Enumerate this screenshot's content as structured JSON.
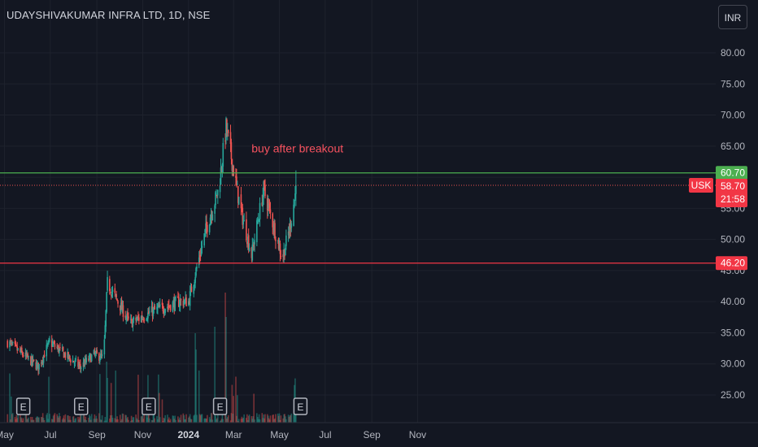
{
  "header": {
    "title": "UDAYSHIVAKUMAR INFRA LTD, 1D, NSE",
    "currency": "INR"
  },
  "colors": {
    "background": "#131722",
    "grid": "#1e222d",
    "up": "#26a69a",
    "down": "#ef5350",
    "resistance": "#4caf50",
    "support": "#f23645",
    "annotation": "#f7525f",
    "text": "#b2b5be"
  },
  "chart_data": {
    "type": "candlestick",
    "title": "UDAYSHIVAKUMAR INFRA LTD, 1D, NSE",
    "y_ticks": [
      "25.00",
      "30.00",
      "35.00",
      "40.00",
      "45.00",
      "50.00",
      "55.00",
      "60.00",
      "65.00",
      "70.00",
      "75.00",
      "80.00"
    ],
    "x_ticks": [
      "May",
      "Jul",
      "Sep",
      "Nov",
      "2024",
      "Mar",
      "May",
      "Jul",
      "Sep",
      "Nov"
    ],
    "ylim": [
      20.5,
      86
    ],
    "grid": true,
    "price_segments": [
      {
        "from": "2023-05-05",
        "to": "2023-06-15",
        "start": 33.5,
        "end": 29.5
      },
      {
        "from": "2023-06-15",
        "to": "2023-06-30",
        "start": 29.5,
        "end": 33.5
      },
      {
        "from": "2023-06-30",
        "to": "2023-08-10",
        "start": 33.5,
        "end": 29.5
      },
      {
        "from": "2023-08-10",
        "to": "2023-08-28",
        "start": 29.5,
        "end": 31.5
      },
      {
        "from": "2023-08-28",
        "to": "2023-09-10",
        "start": 31.5,
        "end": 31.0
      },
      {
        "from": "2023-09-10",
        "to": "2023-09-15",
        "start": 31.0,
        "end": 43.0
      },
      {
        "from": "2023-09-15",
        "to": "2023-10-15",
        "start": 43.0,
        "end": 36.5
      },
      {
        "from": "2023-10-15",
        "to": "2023-11-15",
        "start": 36.5,
        "end": 38.5
      },
      {
        "from": "2023-11-15",
        "to": "2023-12-20",
        "start": 38.5,
        "end": 40.0
      },
      {
        "from": "2023-12-20",
        "to": "2024-01-01",
        "start": 40.0,
        "end": 40.0
      },
      {
        "from": "2024-01-01",
        "to": "2024-01-25",
        "start": 40.0,
        "end": 52.0
      },
      {
        "from": "2024-01-25",
        "to": "2024-02-10",
        "start": 52.0,
        "end": 58.0
      },
      {
        "from": "2024-02-10",
        "to": "2024-02-20",
        "start": 58.0,
        "end": 68.0
      },
      {
        "from": "2024-02-20",
        "to": "2024-03-10",
        "start": 68.0,
        "end": 55.0
      },
      {
        "from": "2024-03-10",
        "to": "2024-03-25",
        "start": 55.0,
        "end": 47.5
      },
      {
        "from": "2024-03-25",
        "to": "2024-04-10",
        "start": 47.5,
        "end": 58.0
      },
      {
        "from": "2024-04-10",
        "to": "2024-05-05",
        "start": 58.0,
        "end": 47.0
      },
      {
        "from": "2024-05-05",
        "to": "2024-05-15",
        "start": 47.0,
        "end": 52.0
      },
      {
        "from": "2024-05-15",
        "to": "2024-05-24",
        "start": 52.0,
        "end": 58.7
      }
    ],
    "levels": [
      {
        "name": "resistance",
        "price": 60.7,
        "label": "60.70"
      },
      {
        "name": "support",
        "price": 46.2,
        "label": "46.20"
      }
    ],
    "last_price": {
      "symbol": "USK",
      "price": 58.7,
      "label": "58.70",
      "countdown": "21:58"
    },
    "earnings_markers": [
      {
        "date": "2023-05-26",
        "label": "E"
      },
      {
        "date": "2023-08-11",
        "label": "E"
      },
      {
        "date": "2023-11-09",
        "label": "E"
      },
      {
        "date": "2024-02-12",
        "label": "E"
      },
      {
        "date": "2024-05-29",
        "label": "E"
      }
    ],
    "annotation": {
      "text": "buy after breakout",
      "price": 64.5,
      "date": "2024-05-25"
    }
  }
}
